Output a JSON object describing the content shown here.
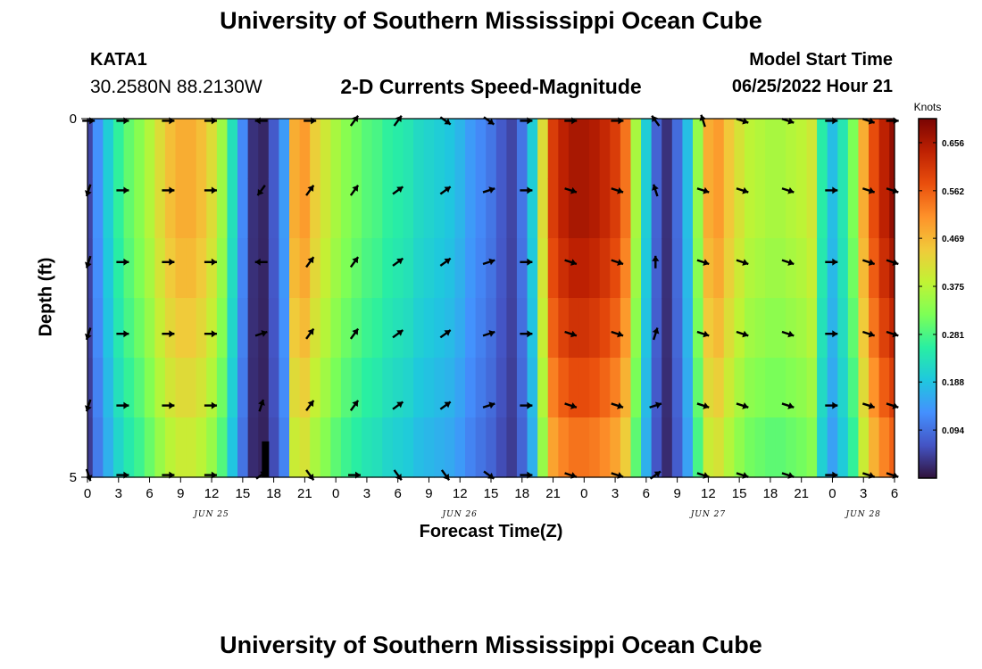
{
  "header": {
    "title": "University of Southern Mississippi Ocean Cube",
    "station_id": "KATA1",
    "station_coords": "30.2580N  88.2130W",
    "subtitle": "2-D Currents Speed-Magnitude",
    "model_start_label": "Model Start Time",
    "model_start_value": "06/25/2022 Hour 21"
  },
  "footer": {
    "title": "University of Southern Mississippi Ocean Cube"
  },
  "chart_data": {
    "type": "heatmap",
    "title": "2-D Currents Speed-Magnitude",
    "xlabel": "Forecast Time(Z)",
    "ylabel": "Depth (ft)",
    "x_hours_range": [
      0,
      78
    ],
    "ylim": [
      0,
      5
    ],
    "y_ticks": [
      "0",
      "5"
    ],
    "x_tick_hours": [
      0,
      3,
      6,
      9,
      12,
      15,
      18,
      21,
      24,
      27,
      30,
      33,
      36,
      39,
      42,
      45,
      48,
      51,
      54,
      57,
      60,
      63,
      66,
      69,
      72,
      75,
      78
    ],
    "x_tick_labels": [
      "0",
      "3",
      "6",
      "9",
      "12",
      "15",
      "18",
      "21",
      "0",
      "3",
      "6",
      "9",
      "12",
      "15",
      "18",
      "21",
      "0",
      "3",
      "6",
      "9",
      "12",
      "15",
      "18",
      "21",
      "0",
      "3",
      "6"
    ],
    "day_labels": [
      {
        "text": "JUN 25",
        "hour": 12
      },
      {
        "text": "JUN 26",
        "hour": 36
      },
      {
        "text": "JUN 27",
        "hour": 60
      },
      {
        "text": "JUN 28",
        "hour": 75
      }
    ],
    "time_hours": [
      0,
      1,
      2,
      3,
      4,
      5,
      6,
      7,
      8,
      9,
      10,
      11,
      12,
      13,
      14,
      15,
      16,
      17,
      18,
      19,
      20,
      21,
      22,
      23,
      24,
      25,
      26,
      27,
      28,
      29,
      30,
      31,
      32,
      33,
      34,
      35,
      36,
      37,
      38,
      39,
      40,
      41,
      42,
      43,
      44,
      45,
      46,
      47,
      48,
      49,
      50,
      51,
      52,
      53,
      54,
      55,
      56,
      57,
      58,
      59,
      60,
      61,
      62,
      63,
      64,
      65,
      66,
      67,
      68,
      69,
      70,
      71,
      72,
      73,
      74,
      75,
      76,
      77,
      78
    ],
    "speed_knots": [
      0.05,
      0.13,
      0.2,
      0.26,
      0.3,
      0.33,
      0.37,
      0.42,
      0.46,
      0.48,
      0.48,
      0.46,
      0.42,
      0.35,
      0.23,
      0.12,
      0.03,
      0.02,
      0.07,
      0.14,
      0.48,
      0.5,
      0.44,
      0.4,
      0.36,
      0.33,
      0.31,
      0.29,
      0.28,
      0.26,
      0.25,
      0.24,
      0.22,
      0.21,
      0.2,
      0.19,
      0.17,
      0.14,
      0.12,
      0.1,
      0.07,
      0.05,
      0.1,
      0.2,
      0.42,
      0.6,
      0.64,
      0.66,
      0.66,
      0.65,
      0.63,
      0.6,
      0.54,
      0.36,
      0.2,
      0.08,
      0.03,
      0.09,
      0.18,
      0.34,
      0.48,
      0.5,
      0.45,
      0.41,
      0.38,
      0.37,
      0.36,
      0.36,
      0.37,
      0.38,
      0.4,
      0.25,
      0.18,
      0.24,
      0.32,
      0.48,
      0.58,
      0.64,
      0.68
    ],
    "depth_speed_factor": [
      1.0,
      1.0,
      0.97,
      0.93,
      0.88,
      0.82
    ],
    "arrow_depths_ft": [
      0.03,
      1.0,
      2.0,
      3.0,
      4.0,
      4.97
    ],
    "arrow_columns": [
      {
        "hour": 0.1,
        "dir": [
          1,
          0.3,
          0.3,
          0.3,
          0.3,
          0.2
        ]
      },
      {
        "hour": 3.4,
        "dir": [
          1,
          1,
          1,
          1,
          1,
          1
        ]
      },
      {
        "hour": 7.8,
        "dir": [
          1,
          1,
          1,
          1,
          1,
          1
        ]
      },
      {
        "hour": 11.9,
        "dir": [
          1,
          1,
          1,
          1,
          1,
          1
        ]
      },
      {
        "hour": 16.8,
        "dir": [
          0.5,
          0.35,
          0.5,
          0.95,
          0.8,
          0.9
        ]
      },
      {
        "hour": 21.5,
        "dir": [
          1,
          0.85,
          0.85,
          0.85,
          0.85,
          0.15
        ]
      },
      {
        "hour": 25.8,
        "dir": [
          0.85,
          0.85,
          0.85,
          0.85,
          0.85,
          0.0
        ]
      },
      {
        "hour": 30.0,
        "dir": [
          0.85,
          0.9,
          0.9,
          0.9,
          0.9,
          0.15
        ]
      },
      {
        "hour": 34.6,
        "dir": [
          0.1,
          0.9,
          0.9,
          0.9,
          0.9,
          0.15
        ]
      },
      {
        "hour": 38.8,
        "dir": [
          0.1,
          0.95,
          0.95,
          0.95,
          0.95,
          0.1
        ]
      },
      {
        "hour": 42.4,
        "dir": [
          1,
          1,
          1,
          1,
          1,
          1
        ]
      },
      {
        "hour": 46.7,
        "dir": [
          1,
          0.05,
          0.05,
          0.05,
          0.05,
          0.05
        ]
      },
      {
        "hour": 51.2,
        "dir": [
          1,
          0.05,
          0.05,
          0.05,
          0.05,
          0.05
        ]
      },
      {
        "hour": 54.9,
        "dir": [
          0.65,
          0.7,
          0.75,
          0.8,
          0.95,
          0.9
        ]
      },
      {
        "hour": 59.5,
        "dir": [
          0.7,
          0.05,
          0.05,
          0.05,
          0.05,
          0.05
        ]
      },
      {
        "hour": 63.3,
        "dir": [
          0.05,
          0.05,
          0.05,
          0.05,
          0.05,
          0.05
        ]
      },
      {
        "hour": 67.7,
        "dir": [
          0.05,
          0.05,
          0.05,
          0.05,
          0.05,
          0.05
        ]
      },
      {
        "hour": 71.9,
        "dir": [
          1,
          1,
          1,
          1,
          1,
          1
        ]
      },
      {
        "hour": 75.5,
        "dir": [
          0.05,
          0.05,
          0.05,
          0.05,
          0.05,
          0.05
        ]
      },
      {
        "hour": 77.8,
        "dir": [
          1,
          0.05,
          0.05,
          0.05,
          0.05,
          0.05
        ]
      }
    ],
    "colorbar": {
      "unit": "Knots",
      "min": 0.0,
      "max": 0.703,
      "ticks": [
        0.094,
        0.188,
        0.281,
        0.375,
        0.469,
        0.562,
        0.656
      ],
      "tick_labels": [
        "0.094",
        "0.188",
        "0.281",
        "0.375",
        "0.469",
        "0.562",
        "0.656"
      ]
    },
    "colors": {
      "c0": "#30123b",
      "c1": "#4454c4",
      "c2": "#4490fe",
      "c3": "#1fc8de",
      "c4": "#29efa2",
      "c5": "#7dff56",
      "c6": "#c1f334",
      "c7": "#f1ca3a",
      "c8": "#fe922a",
      "c9": "#ea4f0d",
      "c10": "#be2102",
      "c11": "#7a0403",
      "dry_cell": "#000000",
      "arrow": "#000000"
    }
  }
}
